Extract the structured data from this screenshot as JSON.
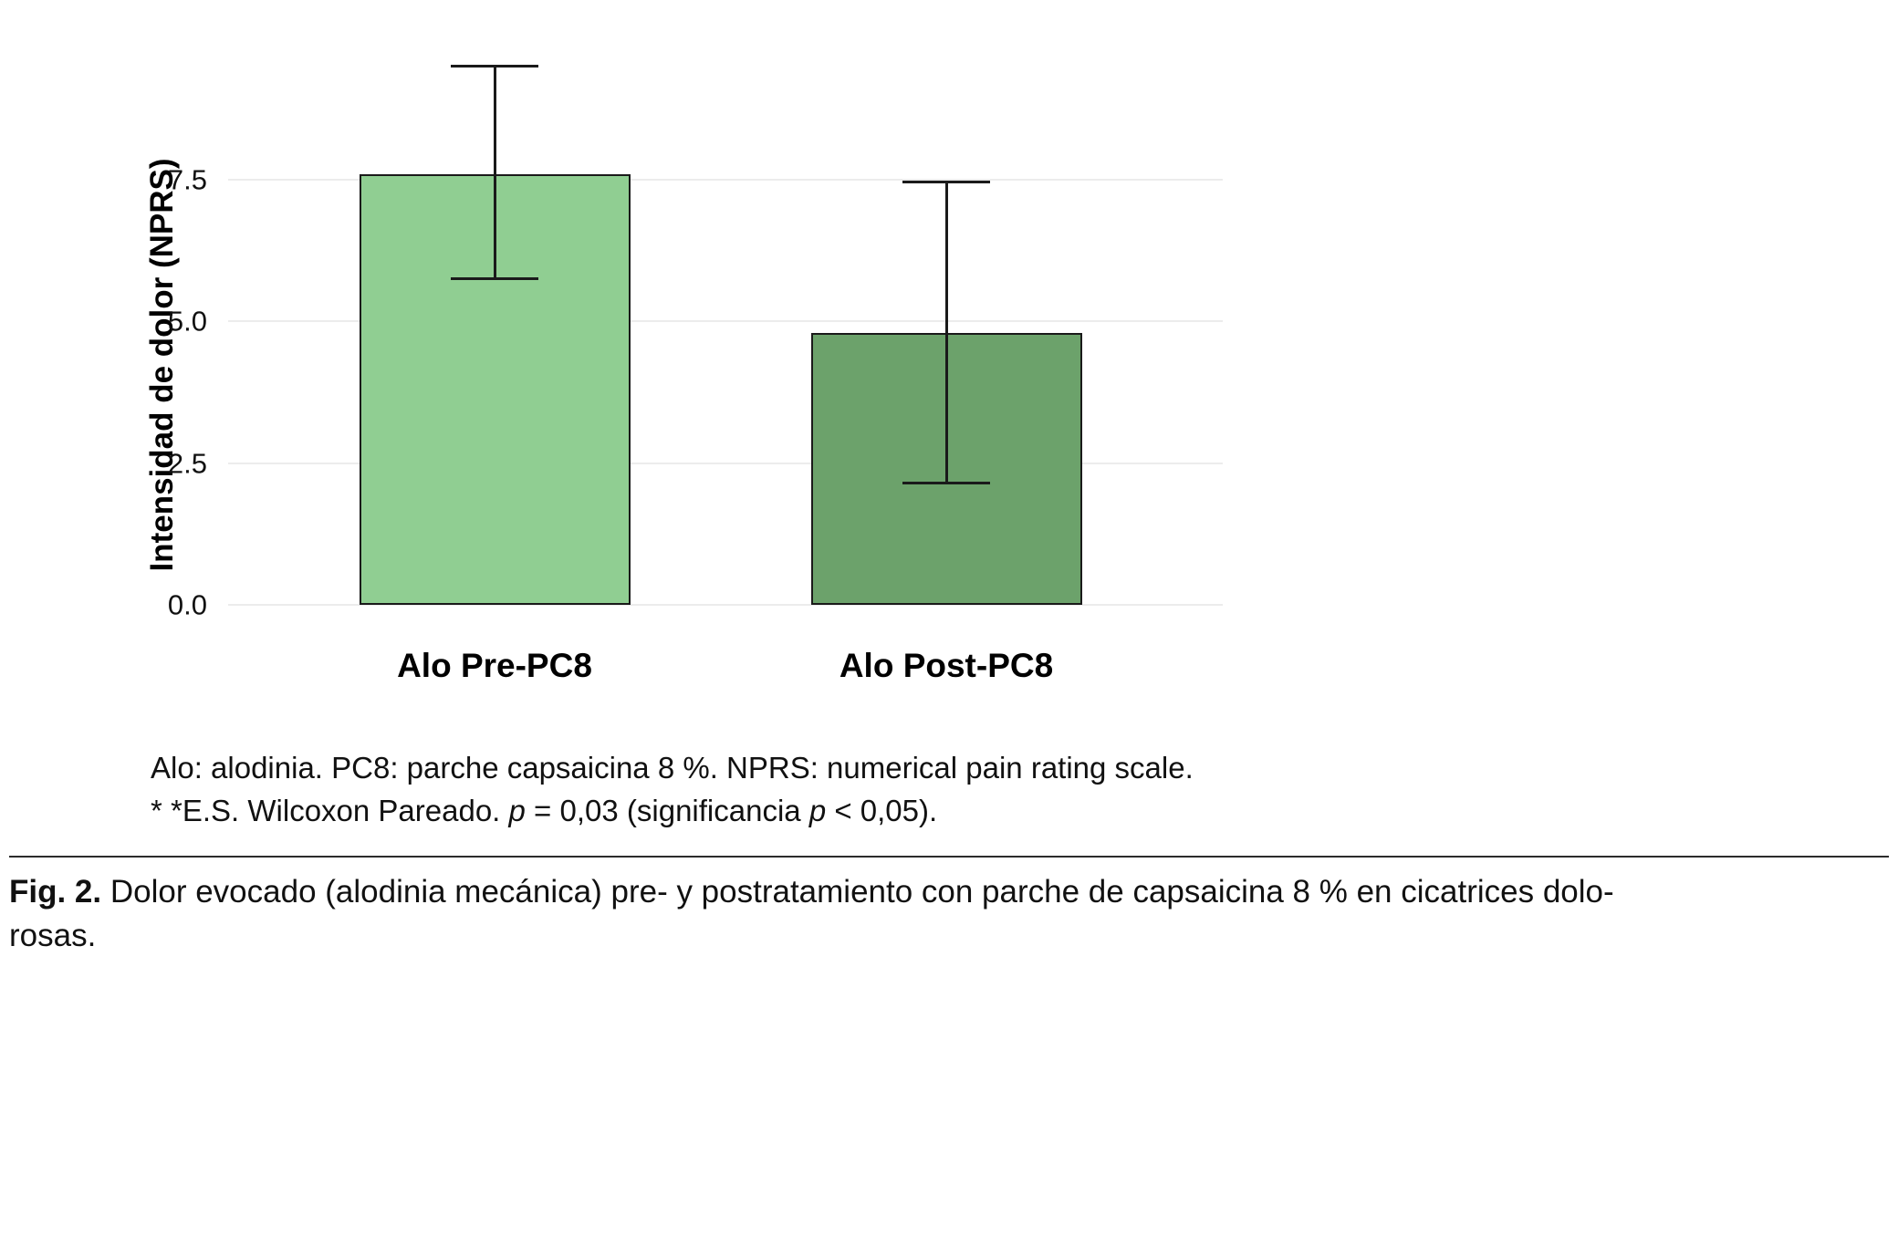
{
  "chart_data": {
    "type": "bar",
    "title": "",
    "xlabel": "",
    "ylabel": "Intensidad de dolor (NPRS)",
    "categories": [
      "Alo Pre-PC8",
      "Alo Post-PC8"
    ],
    "values": [
      7.6,
      4.8
    ],
    "error_high": [
      9.5,
      7.45
    ],
    "error_low": [
      5.75,
      2.15
    ],
    "bar_colors": [
      "#90CE92",
      "#6CA26B"
    ],
    "bar_border_color": "#1a1a1a",
    "ylim": [
      0,
      9.7
    ],
    "yticks": [
      0,
      2.5,
      5,
      7.5
    ],
    "ytick_labels": [
      "0.0",
      "2.5",
      "5.0",
      "7.5"
    ],
    "grid": "horizontal",
    "legend": "none"
  },
  "footnote": {
    "line1": "Alo: alodinia. PC8: parche capsaicina 8 %. NPRS: numerical pain rating scale.",
    "line2_segments": [
      {
        "text": "* *E.S. Wilcoxon Pareado. ",
        "italic": false
      },
      {
        "text": "p",
        "italic": true
      },
      {
        "text": " = 0,03 (significancia ",
        "italic": false
      },
      {
        "text": "p",
        "italic": true
      },
      {
        "text": " < 0,05).",
        "italic": false
      }
    ]
  },
  "caption": {
    "label": "Fig. 2.",
    "line1": "Dolor evocado (alodinia mecánica) pre- y postratamiento con parche de capsaicina 8 % en cicatrices dolo-",
    "line2": "rosas."
  }
}
